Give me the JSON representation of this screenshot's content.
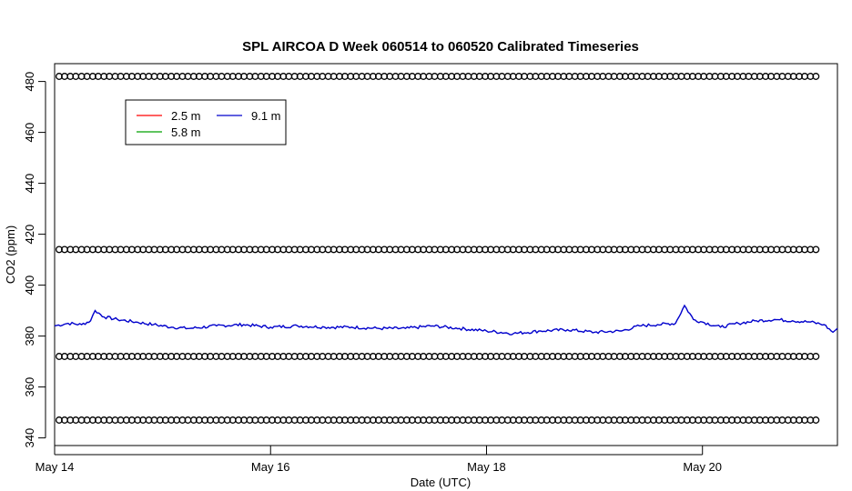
{
  "chart_data": {
    "type": "line",
    "title": "SPL AIRCOA D  Week 060514 to 060520  Calibrated Timeseries",
    "xlabel": "Date (UTC)",
    "ylabel": "CO2 (ppm)",
    "xlim": [
      "2006-05-14T00:00",
      "2006-05-21T06:00"
    ],
    "ylim": [
      337,
      487
    ],
    "y_ticks": [
      340,
      360,
      380,
      400,
      420,
      440,
      460,
      480
    ],
    "x_ticks": [
      {
        "date": "2006-05-14T00:00",
        "label": "May 14"
      },
      {
        "date": "2006-05-16T00:00",
        "label": "May 16"
      },
      {
        "date": "2006-05-18T00:00",
        "label": "May 18"
      },
      {
        "date": "2006-05-20T00:00",
        "label": "May 20"
      }
    ],
    "legend": {
      "position": "top-left",
      "entries": [
        {
          "label": "2.5 m",
          "color": "#ff0000"
        },
        {
          "label": "5.8 m",
          "color": "#00a000"
        },
        {
          "label": "9.1 m",
          "color": "#0000cc"
        }
      ]
    },
    "calibration_points": {
      "marker": "open-circle",
      "levels": [
        482,
        414,
        372,
        347
      ],
      "x_range": [
        "2006-05-14T01:00",
        "2006-05-21T00:00"
      ],
      "count_per_level": 68
    },
    "series": [
      {
        "name": "9.1 m",
        "color": "#0000cc",
        "points": [
          [
            "2006-05-14T00:00",
            384
          ],
          [
            "2006-05-14T03:00",
            385
          ],
          [
            "2006-05-14T06:00",
            384.5
          ],
          [
            "2006-05-14T08:00",
            386
          ],
          [
            "2006-05-14T09:00",
            390
          ],
          [
            "2006-05-14T11:00",
            387.5
          ],
          [
            "2006-05-14T14:00",
            386.5
          ],
          [
            "2006-05-14T18:00",
            385.5
          ],
          [
            "2006-05-14T22:00",
            384.5
          ],
          [
            "2006-05-15T02:00",
            383.5
          ],
          [
            "2006-05-15T06:00",
            383
          ],
          [
            "2006-05-15T12:00",
            384
          ],
          [
            "2006-05-15T18:00",
            384.5
          ],
          [
            "2006-05-16T00:00",
            383.5
          ],
          [
            "2006-05-16T06:00",
            384
          ],
          [
            "2006-05-16T12:00",
            383.5
          ],
          [
            "2006-05-16T18:00",
            383.5
          ],
          [
            "2006-05-17T00:00",
            383
          ],
          [
            "2006-05-17T06:00",
            383
          ],
          [
            "2006-05-17T12:00",
            384
          ],
          [
            "2006-05-17T18:00",
            383
          ],
          [
            "2006-05-18T00:00",
            382
          ],
          [
            "2006-05-18T06:00",
            381
          ],
          [
            "2006-05-18T12:00",
            382
          ],
          [
            "2006-05-18T18:00",
            382.5
          ],
          [
            "2006-05-19T00:00",
            381.5
          ],
          [
            "2006-05-19T06:00",
            382
          ],
          [
            "2006-05-19T10:00",
            384
          ],
          [
            "2006-05-19T14:00",
            384.5
          ],
          [
            "2006-05-19T18:00",
            385
          ],
          [
            "2006-05-19T20:00",
            392
          ],
          [
            "2006-05-19T22:00",
            386.5
          ],
          [
            "2006-05-20T00:00",
            385.5
          ],
          [
            "2006-05-20T04:00",
            383.5
          ],
          [
            "2006-05-20T08:00",
            385
          ],
          [
            "2006-05-20T12:00",
            386
          ],
          [
            "2006-05-20T16:00",
            386.5
          ],
          [
            "2006-05-20T20:00",
            386
          ],
          [
            "2006-05-21T00:00",
            385.5
          ],
          [
            "2006-05-21T03:00",
            384.5
          ],
          [
            "2006-05-21T05:00",
            381.5
          ],
          [
            "2006-05-21T06:00",
            383
          ]
        ]
      }
    ]
  }
}
